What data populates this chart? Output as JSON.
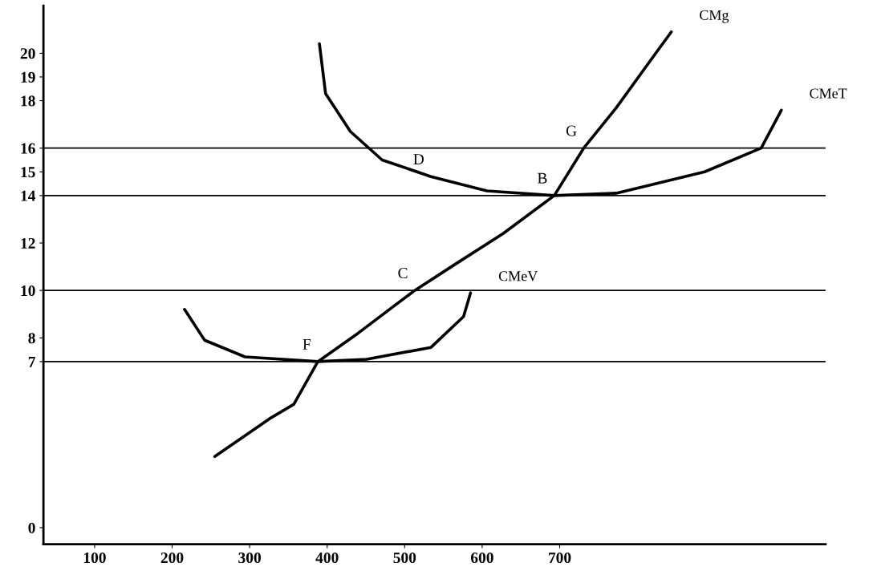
{
  "chart_data": {
    "type": "line",
    "xlim": [
      34,
      1043
    ],
    "ylim": [
      -0.7,
      22
    ],
    "xticks": [
      100,
      200,
      300,
      400,
      500,
      600,
      700
    ],
    "yticks": [
      0,
      7,
      8,
      10,
      12,
      14,
      15,
      16,
      18,
      19,
      20
    ],
    "grid": false,
    "legend": false,
    "marker": "none",
    "line_style": "solid",
    "series": [
      {
        "name": "CMg",
        "color": "#000000",
        "x": [
          255,
          326,
          357,
          388,
          440,
          513,
          565,
          627,
          693,
          731,
          773,
          815,
          844
        ],
        "values": [
          3.0,
          4.6,
          5.2,
          7,
          8.2,
          10,
          11.1,
          12.4,
          14,
          16,
          17.7,
          19.6,
          20.9
        ]
      },
      {
        "name": "CMeT",
        "color": "#000000",
        "x": [
          390,
          398,
          430,
          471,
          534,
          606,
          693,
          773,
          887,
          960,
          986
        ],
        "values": [
          20.4,
          18.3,
          16.7,
          15.5,
          14.8,
          14.2,
          14,
          14.1,
          15.0,
          16,
          17.6
        ]
      },
      {
        "name": "CMeV",
        "color": "#000000",
        "x": [
          216,
          242,
          294,
          388,
          451,
          534,
          576,
          585
        ],
        "values": [
          9.2,
          7.9,
          7.2,
          7,
          7.1,
          7.6,
          8.9,
          9.9
        ]
      }
    ],
    "ref_lines": [
      {
        "axis": "y",
        "value": 7,
        "color": "#000000"
      },
      {
        "axis": "y",
        "value": 10,
        "color": "#000000"
      },
      {
        "axis": "y",
        "value": 14,
        "color": "#000000"
      },
      {
        "axis": "y",
        "value": 16,
        "color": "#000000"
      }
    ],
    "annotations": [
      {
        "text": "D",
        "x": 534,
        "y": 14.8
      },
      {
        "text": "G",
        "x": 731,
        "y": 16
      },
      {
        "text": "B",
        "x": 693,
        "y": 14
      },
      {
        "text": "C",
        "x": 513,
        "y": 10
      },
      {
        "text": "F",
        "x": 388,
        "y": 7
      }
    ]
  }
}
